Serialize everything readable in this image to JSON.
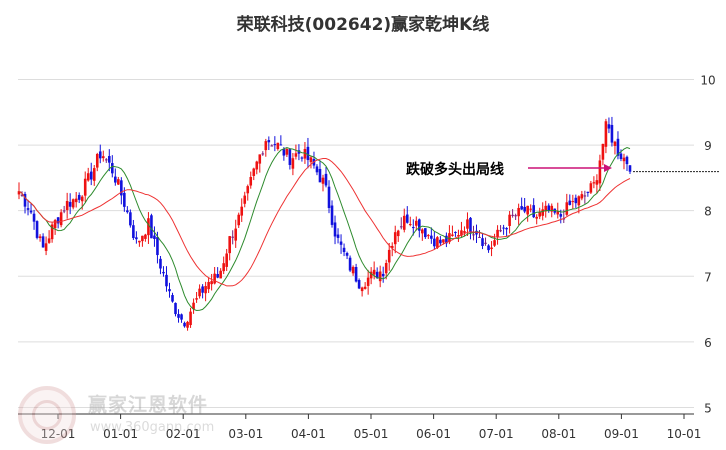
{
  "chart_data": {
    "type": "candlestick",
    "title": "荣联科技(002642)赢家乾坤K线",
    "annotation": "跌破多头出局线",
    "xlabel": "",
    "ylabel": "",
    "y_ticks": [
      5,
      6,
      7,
      8,
      9,
      10
    ],
    "ylim": [
      4.9,
      10.45
    ],
    "x_ticks": [
      "12-01",
      "01-01",
      "02-01",
      "03-01",
      "04-01",
      "05-01",
      "06-01",
      "07-01",
      "08-01",
      "09-01",
      "10-01"
    ],
    "grid": true,
    "colors": {
      "up": "#ee1111",
      "down": "#1111dd",
      "flat": "#7a1f7a",
      "ma_slow": "#ee3333",
      "ma_fast": "#2e8b2e",
      "arrow": "#cc1177",
      "axis": "#333333",
      "grid": "#dddddd",
      "dotted": "#222222"
    },
    "series": [
      {
        "name": "",
        "values": [
          8.3,
          8.0,
          7.4,
          7.8,
          8.1,
          8.2,
          8.5,
          8.9,
          8.6,
          8.1,
          7.5,
          7.8,
          7.2,
          6.6,
          6.3,
          6.6,
          6.9,
          7.0,
          7.6,
          8.0,
          8.6,
          9.1,
          9.0,
          8.8,
          8.9,
          8.7,
          8.4,
          7.6,
          7.2,
          6.9,
          7.0,
          7.1,
          7.7,
          7.9,
          7.8,
          7.6,
          7.5,
          7.6,
          7.8,
          7.7,
          7.4,
          7.7,
          7.9,
          8.0,
          7.9,
          8.0,
          7.9,
          8.1,
          8.2,
          8.4,
          9.3,
          8.9,
          8.7
        ]
      }
    ],
    "watermark": {
      "name": "赢家江恩软件",
      "url": "www.360gann.com"
    }
  }
}
